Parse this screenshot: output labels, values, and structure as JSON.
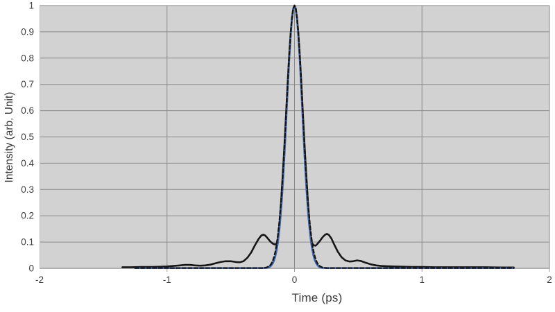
{
  "chart_data": {
    "type": "line",
    "title": "",
    "xlabel": "Time (ps)",
    "ylabel": "Intensity (arb. Unit)",
    "xlim": [
      -2,
      2
    ],
    "ylim": [
      0,
      1
    ],
    "x_ticks": [
      -2,
      -1,
      0,
      1,
      2
    ],
    "y_ticks": [
      0,
      0.1,
      0.2,
      0.3,
      0.4,
      0.5,
      0.6,
      0.7,
      0.8,
      0.9,
      1
    ],
    "x_gridlines": [
      -1,
      0,
      1,
      2
    ],
    "grid": true,
    "legend": "none",
    "plot_background": "#d2d2d2",
    "gridline_color": "#8a8a8a",
    "axis_line_color": "#9a9a9a",
    "tick_label_color": "#3d3d3d",
    "series": [
      {
        "name": "measured-pulse",
        "color": "#161616",
        "style": "solid",
        "width": 2.6,
        "points": [
          [
            -1.35,
            0.004
          ],
          [
            -1.28,
            0.004
          ],
          [
            -1.2,
            0.005
          ],
          [
            -1.12,
            0.005
          ],
          [
            -1.05,
            0.006
          ],
          [
            -1.0,
            0.007
          ],
          [
            -0.95,
            0.009
          ],
          [
            -0.9,
            0.011
          ],
          [
            -0.86,
            0.013
          ],
          [
            -0.82,
            0.013
          ],
          [
            -0.78,
            0.011
          ],
          [
            -0.74,
            0.01
          ],
          [
            -0.7,
            0.011
          ],
          [
            -0.66,
            0.014
          ],
          [
            -0.62,
            0.019
          ],
          [
            -0.58,
            0.024
          ],
          [
            -0.54,
            0.027
          ],
          [
            -0.5,
            0.027
          ],
          [
            -0.46,
            0.024
          ],
          [
            -0.43,
            0.023
          ],
          [
            -0.4,
            0.027
          ],
          [
            -0.37,
            0.04
          ],
          [
            -0.34,
            0.06
          ],
          [
            -0.31,
            0.088
          ],
          [
            -0.28,
            0.113
          ],
          [
            -0.26,
            0.125
          ],
          [
            -0.245,
            0.128
          ],
          [
            -0.23,
            0.125
          ],
          [
            -0.21,
            0.114
          ],
          [
            -0.19,
            0.102
          ],
          [
            -0.17,
            0.094
          ],
          [
            -0.155,
            0.091
          ],
          [
            -0.145,
            0.092
          ],
          [
            -0.135,
            0.098
          ],
          [
            -0.125,
            0.13
          ],
          [
            -0.115,
            0.185
          ],
          [
            -0.105,
            0.25
          ],
          [
            -0.1,
            0.295
          ],
          [
            -0.09,
            0.372
          ],
          [
            -0.08,
            0.458
          ],
          [
            -0.07,
            0.55
          ],
          [
            -0.06,
            0.644
          ],
          [
            -0.05,
            0.737
          ],
          [
            -0.04,
            0.823
          ],
          [
            -0.03,
            0.896
          ],
          [
            -0.02,
            0.952
          ],
          [
            -0.01,
            0.988
          ],
          [
            0,
            1
          ],
          [
            0.01,
            0.988
          ],
          [
            0.02,
            0.952
          ],
          [
            0.03,
            0.896
          ],
          [
            0.04,
            0.823
          ],
          [
            0.05,
            0.737
          ],
          [
            0.06,
            0.644
          ],
          [
            0.07,
            0.55
          ],
          [
            0.08,
            0.458
          ],
          [
            0.09,
            0.372
          ],
          [
            0.1,
            0.295
          ],
          [
            0.105,
            0.25
          ],
          [
            0.115,
            0.185
          ],
          [
            0.125,
            0.13
          ],
          [
            0.135,
            0.098
          ],
          [
            0.15,
            0.088
          ],
          [
            0.165,
            0.086
          ],
          [
            0.18,
            0.093
          ],
          [
            0.2,
            0.105
          ],
          [
            0.22,
            0.118
          ],
          [
            0.24,
            0.128
          ],
          [
            0.255,
            0.131
          ],
          [
            0.27,
            0.127
          ],
          [
            0.29,
            0.113
          ],
          [
            0.31,
            0.092
          ],
          [
            0.34,
            0.063
          ],
          [
            0.37,
            0.042
          ],
          [
            0.4,
            0.03
          ],
          [
            0.43,
            0.026
          ],
          [
            0.46,
            0.027
          ],
          [
            0.49,
            0.03
          ],
          [
            0.52,
            0.028
          ],
          [
            0.56,
            0.021
          ],
          [
            0.6,
            0.015
          ],
          [
            0.64,
            0.011
          ],
          [
            0.68,
            0.009
          ],
          [
            0.72,
            0.008
          ],
          [
            0.78,
            0.007
          ],
          [
            0.85,
            0.006
          ],
          [
            0.92,
            0.005
          ],
          [
            1.0,
            0.005
          ],
          [
            1.1,
            0.004
          ],
          [
            1.22,
            0.004
          ],
          [
            1.35,
            0.004
          ],
          [
            1.5,
            0.004
          ],
          [
            1.62,
            0.003
          ],
          [
            1.72,
            0.003
          ]
        ]
      },
      {
        "name": "fit-pulse-solid",
        "color": "#3e64ab",
        "style": "solid",
        "width": 2.6,
        "points": [
          [
            -1.25,
            0.001
          ],
          [
            -0.9,
            0.001
          ],
          [
            -0.6,
            0.001
          ],
          [
            -0.4,
            0.001
          ],
          [
            -0.3,
            0.001
          ],
          [
            -0.25,
            0.001
          ],
          [
            -0.22,
            0.0014
          ],
          [
            -0.2,
            0.004
          ],
          [
            -0.19,
            0.007
          ],
          [
            -0.18,
            0.012
          ],
          [
            -0.17,
            0.019
          ],
          [
            -0.16,
            0.03
          ],
          [
            -0.15,
            0.046
          ],
          [
            -0.14,
            0.069
          ],
          [
            -0.13,
            0.099
          ],
          [
            -0.12,
            0.14
          ],
          [
            -0.11,
            0.192
          ],
          [
            -0.1,
            0.255
          ],
          [
            -0.09,
            0.331
          ],
          [
            -0.08,
            0.417
          ],
          [
            -0.07,
            0.512
          ],
          [
            -0.06,
            0.612
          ],
          [
            -0.05,
            0.711
          ],
          [
            -0.04,
            0.804
          ],
          [
            -0.03,
            0.884
          ],
          [
            -0.02,
            0.947
          ],
          [
            -0.01,
            0.986
          ],
          [
            0,
            1
          ],
          [
            0.01,
            0.986
          ],
          [
            0.02,
            0.947
          ],
          [
            0.03,
            0.884
          ],
          [
            0.04,
            0.804
          ],
          [
            0.05,
            0.711
          ],
          [
            0.06,
            0.612
          ],
          [
            0.07,
            0.512
          ],
          [
            0.08,
            0.417
          ],
          [
            0.09,
            0.331
          ],
          [
            0.1,
            0.255
          ],
          [
            0.11,
            0.192
          ],
          [
            0.12,
            0.14
          ],
          [
            0.13,
            0.099
          ],
          [
            0.14,
            0.069
          ],
          [
            0.15,
            0.046
          ],
          [
            0.16,
            0.03
          ],
          [
            0.17,
            0.019
          ],
          [
            0.18,
            0.012
          ],
          [
            0.19,
            0.007
          ],
          [
            0.2,
            0.004
          ],
          [
            0.22,
            0.0014
          ],
          [
            0.25,
            0.001
          ],
          [
            0.3,
            0.001
          ],
          [
            0.4,
            0.001
          ],
          [
            0.6,
            0.001
          ],
          [
            1.0,
            0.001
          ],
          [
            1.4,
            0.001
          ],
          [
            1.72,
            0.001
          ]
        ]
      },
      {
        "name": "fit-pulse-dashed",
        "color": "#141414",
        "style": "dashed",
        "width": 2.3,
        "points": [
          [
            -1.25,
            0.001
          ],
          [
            -0.9,
            0.001
          ],
          [
            -0.6,
            0.001
          ],
          [
            -0.4,
            0.001
          ],
          [
            -0.3,
            0.001
          ],
          [
            -0.25,
            0.001
          ],
          [
            -0.22,
            0.003
          ],
          [
            -0.2,
            0.008
          ],
          [
            -0.19,
            0.012
          ],
          [
            -0.18,
            0.019
          ],
          [
            -0.17,
            0.029
          ],
          [
            -0.16,
            0.044
          ],
          [
            -0.15,
            0.064
          ],
          [
            -0.14,
            0.091
          ],
          [
            -0.13,
            0.127
          ],
          [
            -0.12,
            0.172
          ],
          [
            -0.11,
            0.228
          ],
          [
            -0.1,
            0.295
          ],
          [
            -0.09,
            0.372
          ],
          [
            -0.08,
            0.458
          ],
          [
            -0.07,
            0.55
          ],
          [
            -0.06,
            0.644
          ],
          [
            -0.05,
            0.737
          ],
          [
            -0.04,
            0.823
          ],
          [
            -0.03,
            0.896
          ],
          [
            -0.02,
            0.952
          ],
          [
            -0.01,
            0.988
          ],
          [
            0,
            1
          ],
          [
            0.01,
            0.988
          ],
          [
            0.02,
            0.952
          ],
          [
            0.03,
            0.896
          ],
          [
            0.04,
            0.823
          ],
          [
            0.05,
            0.737
          ],
          [
            0.06,
            0.644
          ],
          [
            0.07,
            0.55
          ],
          [
            0.08,
            0.458
          ],
          [
            0.09,
            0.372
          ],
          [
            0.1,
            0.295
          ],
          [
            0.11,
            0.228
          ],
          [
            0.12,
            0.172
          ],
          [
            0.13,
            0.127
          ],
          [
            0.14,
            0.091
          ],
          [
            0.15,
            0.064
          ],
          [
            0.16,
            0.044
          ],
          [
            0.17,
            0.029
          ],
          [
            0.18,
            0.019
          ],
          [
            0.19,
            0.012
          ],
          [
            0.2,
            0.008
          ],
          [
            0.22,
            0.003
          ],
          [
            0.25,
            0.001
          ],
          [
            0.3,
            0.001
          ],
          [
            0.4,
            0.001
          ],
          [
            0.6,
            0.001
          ],
          [
            1.0,
            0.001
          ],
          [
            1.4,
            0.001
          ],
          [
            1.72,
            0.001
          ]
        ]
      }
    ]
  }
}
